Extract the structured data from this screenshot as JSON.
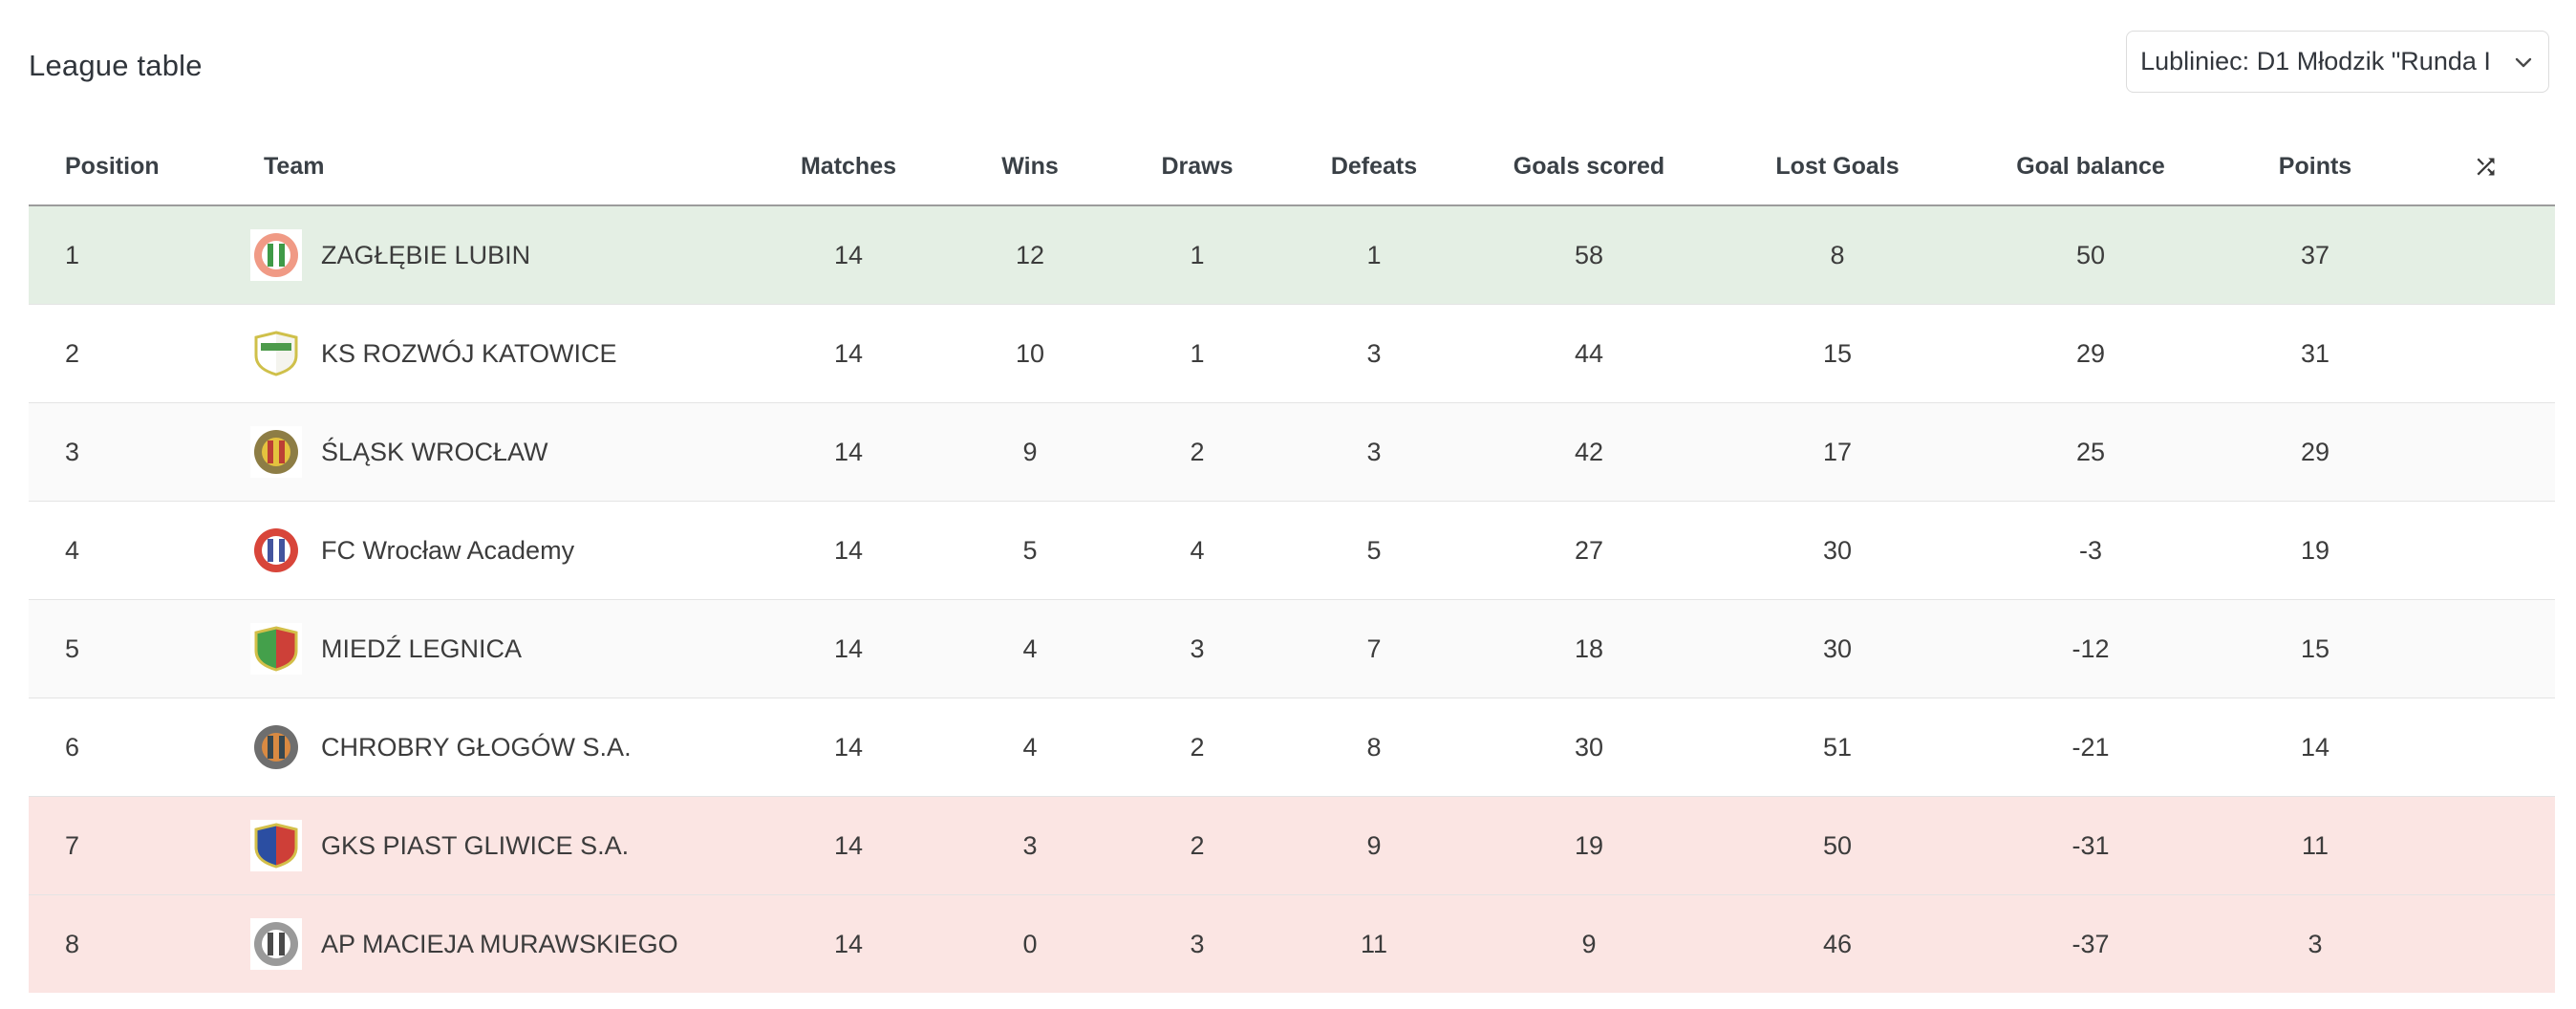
{
  "header": {
    "title": "League table"
  },
  "season_dropdown": {
    "value": "Lubliniec: D1 Młodzik \"Runda I",
    "chevron_icon": "chevron-down-icon"
  },
  "table": {
    "columns": [
      "Position",
      "Team",
      "Matches",
      "Wins",
      "Draws",
      "Defeats",
      "Goals scored",
      "Lost Goals",
      "Goal balance",
      "Points"
    ],
    "sort_icon": "shuffle-icon",
    "rows": [
      {
        "position": "1",
        "team": "ZAGŁĘBIE LUBIN",
        "matches": "14",
        "wins": "12",
        "draws": "1",
        "defeats": "1",
        "goals_scored": "58",
        "lost_goals": "8",
        "goal_balance": "50",
        "points": "37",
        "zone": "promotion",
        "striped": false,
        "crest": {
          "shape": "circle",
          "c1": "#f09a85",
          "c2": "#ffffff",
          "c3": "#3f9a47"
        }
      },
      {
        "position": "2",
        "team": "KS ROZWÓJ KATOWICE",
        "matches": "14",
        "wins": "10",
        "draws": "1",
        "defeats": "3",
        "goals_scored": "44",
        "lost_goals": "15",
        "goal_balance": "29",
        "points": "31",
        "zone": null,
        "striped": false,
        "crest": {
          "shape": "shield",
          "c1": "#cfc04a",
          "c2": "#ffffff",
          "c3": "#f4f4ee",
          "band": "#4d9b4b"
        }
      },
      {
        "position": "3",
        "team": "ŚLĄSK WROCŁAW",
        "matches": "14",
        "wins": "9",
        "draws": "2",
        "defeats": "3",
        "goals_scored": "42",
        "lost_goals": "17",
        "goal_balance": "25",
        "points": "29",
        "zone": null,
        "striped": true,
        "crest": {
          "shape": "circle",
          "c1": "#8d7d45",
          "c2": "#e4c23e",
          "c3": "#bc3f35"
        }
      },
      {
        "position": "4",
        "team": "FC Wrocław Academy",
        "matches": "14",
        "wins": "5",
        "draws": "4",
        "defeats": "5",
        "goals_scored": "27",
        "lost_goals": "30",
        "goal_balance": "-3",
        "points": "19",
        "zone": null,
        "striped": false,
        "crest": {
          "shape": "circle",
          "c1": "#d8453a",
          "c2": "#ffffff",
          "c3": "#44549e"
        }
      },
      {
        "position": "5",
        "team": "MIEDŹ LEGNICA",
        "matches": "14",
        "wins": "4",
        "draws": "3",
        "defeats": "7",
        "goals_scored": "18",
        "lost_goals": "30",
        "goal_balance": "-12",
        "points": "15",
        "zone": null,
        "striped": true,
        "crest": {
          "shape": "shield",
          "c1": "#d3bf49",
          "c2": "#44a04b",
          "c3": "#cd4038"
        }
      },
      {
        "position": "6",
        "team": "CHROBRY GŁOGÓW S.A.",
        "matches": "14",
        "wins": "4",
        "draws": "2",
        "defeats": "8",
        "goals_scored": "30",
        "lost_goals": "51",
        "goal_balance": "-21",
        "points": "14",
        "zone": null,
        "striped": false,
        "crest": {
          "shape": "circle",
          "c1": "#6e6e6e",
          "c2": "#d98a42",
          "c3": "#37474f"
        }
      },
      {
        "position": "7",
        "team": "GKS PIAST GLIWICE S.A.",
        "matches": "14",
        "wins": "3",
        "draws": "2",
        "defeats": "9",
        "goals_scored": "19",
        "lost_goals": "50",
        "goal_balance": "-31",
        "points": "11",
        "zone": "relegation",
        "striped": false,
        "crest": {
          "shape": "shield",
          "c1": "#d3bf49",
          "c2": "#2b4ea2",
          "c3": "#ce3f38"
        }
      },
      {
        "position": "8",
        "team": "AP MACIEJA MURAWSKIEGO",
        "matches": "14",
        "wins": "0",
        "draws": "3",
        "defeats": "11",
        "goals_scored": "9",
        "lost_goals": "46",
        "goal_balance": "-37",
        "points": "3",
        "zone": "relegation",
        "striped": false,
        "crest": {
          "shape": "circle",
          "c1": "#9a9a9a",
          "c2": "#ffffff",
          "c3": "#4a4a4a"
        }
      }
    ]
  },
  "colors": {
    "promotion_row": "#e4efe4",
    "relegation_row": "#fbe5e3",
    "stripe_row": "#fafafa",
    "row_separator": "#e4e4e4",
    "header_separator": "#9c9c9c"
  }
}
